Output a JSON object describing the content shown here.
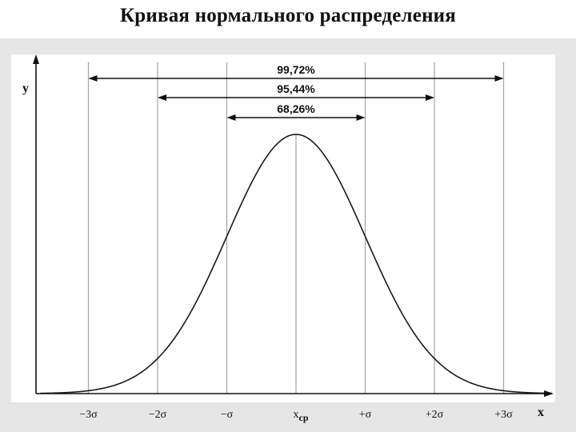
{
  "title": "Кривая нормального распределения",
  "chart_data": {
    "type": "line",
    "axis": {
      "xlabel": "x",
      "ylabel": "y"
    },
    "ticks": [
      "−3σ",
      "−2σ",
      "−σ",
      "x_cp",
      "+σ",
      "+2σ",
      "+3σ"
    ],
    "mean_label": {
      "base": "x",
      "sub": "cp"
    },
    "intervals": [
      {
        "label": "99,72%",
        "from_sigma": -3,
        "to_sigma": 3
      },
      {
        "label": "95,44%",
        "from_sigma": -2,
        "to_sigma": 2
      },
      {
        "label": "68,26%",
        "from_sigma": -1,
        "to_sigma": 1
      }
    ],
    "curve": "normal",
    "x_range_sigma": [
      -3.7,
      3.7
    ]
  },
  "colors": {
    "background": "#ffffff",
    "plot_background": "#ffffff",
    "frame_background": "#e6e6e6",
    "curve": "#1a1a1a",
    "guide_lines": "#a8a8a8",
    "arrows": "#111111"
  }
}
